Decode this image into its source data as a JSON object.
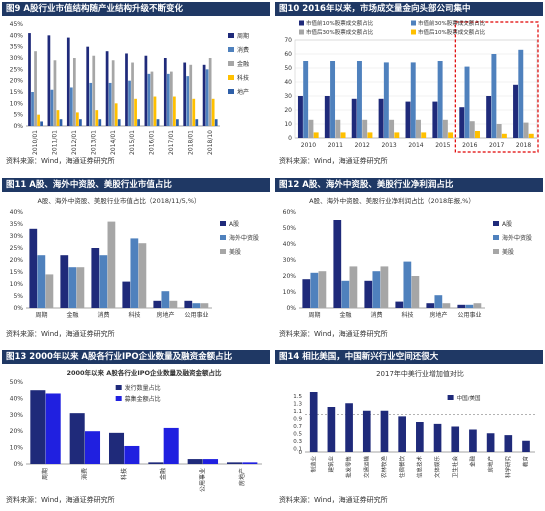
{
  "panels": [
    {
      "id": "p1",
      "header": "图9 A股行业市值结构随产业结构升级不断变化",
      "source": "资料来源：Wind，海通证券研究所"
    },
    {
      "id": "p2",
      "header": "图10 2016年以来，市场成交量金向头部公司集中",
      "source": "资料来源：Wind，海通证券研究所"
    },
    {
      "id": "p3",
      "header": "图11 A股、海外中资股、美股行业市值占比",
      "source": "资料来源：Wind，海通证券研究所"
    },
    {
      "id": "p4",
      "header": "图12 A股、海外中资股、美股行业净利润占比",
      "source": "资料来源：Wind，海通证券研究所"
    },
    {
      "id": "p5",
      "header": "图13 2000年以来 A股各行业IPO企业数量及融资金额占比",
      "source": "资料来源：Wind，海通证券研究所"
    },
    {
      "id": "p6",
      "header": "图14 相比美国，中国新兴行业空间还很大",
      "source": "资料来源：Wind，海通证券研究所"
    }
  ],
  "chart_data": [
    {
      "type": "bar",
      "panel": "p1",
      "categories": [
        "2010/01",
        "2011/01",
        "2012/01",
        "2013/01",
        "2014/01",
        "2015/01",
        "2016/01",
        "2017/01",
        "2018/01",
        "2018/10"
      ],
      "series": [
        {
          "name": "周期",
          "color": "#1f2a7a",
          "values": [
            41,
            40,
            39,
            35,
            33,
            32,
            31,
            30,
            28,
            27
          ]
        },
        {
          "name": "消费",
          "color": "#4f81bd",
          "values": [
            15,
            16,
            17,
            19,
            19,
            20,
            23,
            23,
            22,
            25
          ]
        },
        {
          "name": "金融",
          "color": "#a6a6a6",
          "values": [
            33,
            29,
            30,
            31,
            29,
            28,
            24,
            24,
            27,
            30
          ]
        },
        {
          "name": "科技",
          "color": "#ffc000",
          "values": [
            5,
            7,
            6,
            7,
            10,
            12,
            13,
            13,
            12,
            12
          ]
        },
        {
          "name": "地产",
          "color": "#2e5fa8",
          "values": [
            2,
            3,
            3,
            3,
            3,
            3,
            3,
            3,
            3,
            3
          ]
        }
      ],
      "ylim": [
        0,
        45
      ],
      "yticks": [
        0,
        5,
        10,
        15,
        20,
        25,
        30,
        35,
        40,
        45
      ],
      "ytick_suffix": "%"
    },
    {
      "type": "bar",
      "panel": "p2",
      "categories": [
        "2010",
        "2011",
        "2012",
        "2013",
        "2014",
        "2015",
        "2016",
        "2017",
        "2018"
      ],
      "series": [
        {
          "name": "市值前10%股票成交额占比",
          "color": "#1f2a7a",
          "values": [
            30,
            30,
            28,
            28,
            26,
            26,
            22,
            30,
            38
          ]
        },
        {
          "name": "市值前30%股票成交额占比",
          "color": "#4f81bd",
          "values": [
            55,
            55,
            55,
            54,
            54,
            55,
            51,
            60,
            63
          ]
        },
        {
          "name": "市值后30%股票成交额占比",
          "color": "#a6a6a6",
          "values": [
            13,
            13,
            13,
            13,
            13,
            13,
            12,
            10,
            11
          ]
        },
        {
          "name": "市值后10%股票成交额占比",
          "color": "#ffc000",
          "values": [
            4,
            4,
            4,
            4,
            4,
            4,
            5,
            3,
            3
          ]
        }
      ],
      "ylim": [
        0,
        70
      ],
      "yticks": [
        0,
        10,
        20,
        30,
        40,
        50,
        60,
        70
      ],
      "ytick_suffix": "",
      "highlight": [
        "2016",
        "2018"
      ]
    },
    {
      "type": "bar",
      "panel": "p3",
      "subtitle": "A股、海外中资股、美股行业市值占比（2018/11/5,%）",
      "categories": [
        "周期",
        "金融",
        "消费",
        "科技",
        "房地产",
        "公用事业"
      ],
      "series": [
        {
          "name": "A股",
          "color": "#1f2a7a",
          "values": [
            33,
            22,
            25,
            11,
            3,
            3
          ]
        },
        {
          "name": "海外中资股",
          "color": "#4f81bd",
          "values": [
            22,
            17,
            22,
            29,
            7,
            2
          ]
        },
        {
          "name": "美股",
          "color": "#a6a6a6",
          "values": [
            14,
            17,
            36,
            27,
            3,
            2
          ]
        }
      ],
      "ylim": [
        0,
        40
      ],
      "yticks": [
        0,
        5,
        10,
        15,
        20,
        25,
        30,
        35,
        40
      ],
      "ytick_suffix": "%"
    },
    {
      "type": "bar",
      "panel": "p4",
      "subtitle": "A股、海外中资股、美股行业净利润占比（2018年报,%）",
      "categories": [
        "周期",
        "金融",
        "消费",
        "科技",
        "房地产",
        "公用事业"
      ],
      "series": [
        {
          "name": "A股",
          "color": "#1f2a7a",
          "values": [
            18,
            55,
            17,
            4,
            3,
            2
          ]
        },
        {
          "name": "海外中资股",
          "color": "#4f81bd",
          "values": [
            22,
            17,
            23,
            29,
            8,
            2
          ]
        },
        {
          "name": "美股",
          "color": "#a6a6a6",
          "values": [
            23,
            26,
            26,
            20,
            3,
            3
          ]
        }
      ],
      "ylim": [
        0,
        60
      ],
      "yticks": [
        0,
        10,
        20,
        30,
        40,
        50,
        60
      ],
      "ytick_suffix": "%"
    },
    {
      "type": "bar",
      "panel": "p5",
      "subtitle": "2000年以来 A股各行业IPO企业数量及融资金额占比",
      "categories": [
        "周期",
        "消费",
        "科技",
        "金融",
        "公用事业",
        "房地产"
      ],
      "series": [
        {
          "name": "发行数量占比",
          "color": "#1f2a7a",
          "values": [
            45,
            31,
            19,
            1,
            3,
            1
          ]
        },
        {
          "name": "募集金额占比",
          "color": "#2020e0",
          "values": [
            43,
            20,
            11,
            22,
            3,
            1
          ]
        }
      ],
      "ylim": [
        0,
        50
      ],
      "yticks": [
        0,
        10,
        20,
        30,
        40,
        50
      ],
      "ytick_suffix": "%"
    },
    {
      "type": "bar",
      "panel": "p6",
      "title": "2017年中美行业增加值对比",
      "categories": [
        "制造业",
        "建筑业",
        "批发零售",
        "交通运输",
        "农林牧渔",
        "住宿餐饮",
        "信息技术",
        "文体娱乐",
        "卫生社会",
        "金融",
        "房地产",
        "科学研究",
        "教育"
      ],
      "series": [
        {
          "name": "中国/美国",
          "color": "#1f2a7a",
          "values": [
            1.6,
            1.2,
            1.3,
            1.1,
            1.1,
            0.95,
            0.8,
            0.75,
            0.68,
            0.6,
            0.5,
            0.45,
            0.3
          ]
        }
      ],
      "ylim": [
        0,
        1.6
      ],
      "yticks": [
        0,
        0.1,
        0.3,
        0.5,
        0.7,
        0.9,
        1.1,
        1.3,
        1.5
      ],
      "ytick_suffix": "",
      "reference_line": 1
    }
  ]
}
